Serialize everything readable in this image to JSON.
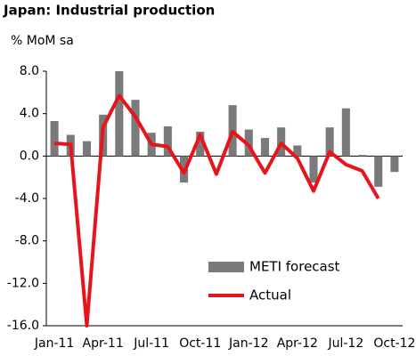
{
  "chart_data": {
    "type": "bar-line",
    "title": "Japan: Industrial production",
    "subtitle": "% MoM sa",
    "categories": [
      "Jan-11",
      null,
      null,
      "Apr-11",
      null,
      null,
      "Jul-11",
      null,
      null,
      "Oct-11",
      null,
      null,
      "Jan-12",
      null,
      null,
      "Apr-12",
      null,
      null,
      "Jul-12",
      null,
      null,
      "Oct-12"
    ],
    "series": [
      {
        "name": "METI forecast",
        "type": "bar",
        "color": "#7a7a7a",
        "values": [
          3.3,
          2.0,
          1.4,
          3.9,
          8.0,
          5.3,
          2.2,
          2.8,
          -2.5,
          2.3,
          0,
          4.8,
          2.5,
          1.7,
          2.7,
          1.0,
          -2.5,
          2.7,
          4.5,
          0.1,
          -2.9,
          -1.5
        ]
      },
      {
        "name": "Actual",
        "type": "line",
        "color": "#e8141b",
        "values": [
          1.2,
          1.1,
          -16.0,
          2.7,
          5.7,
          3.7,
          1.1,
          0.9,
          -1.6,
          2.0,
          -1.7,
          2.3,
          1.0,
          -1.6,
          1.2,
          -0.2,
          -3.3,
          0.4,
          -0.8,
          -1.4,
          -4.0,
          null
        ]
      }
    ],
    "ylim": [
      -16,
      8
    ],
    "yticks": [
      {
        "value": 8,
        "label": "8.0"
      },
      {
        "value": 4,
        "label": "4.0"
      },
      {
        "value": 0,
        "label": "0.0"
      },
      {
        "value": -4,
        "label": "-4.0"
      },
      {
        "value": -8,
        "label": "-8.0"
      },
      {
        "value": -12,
        "label": "-12.0"
      },
      {
        "value": -16,
        "label": "-16.0"
      }
    ],
    "legend": "lower right"
  }
}
